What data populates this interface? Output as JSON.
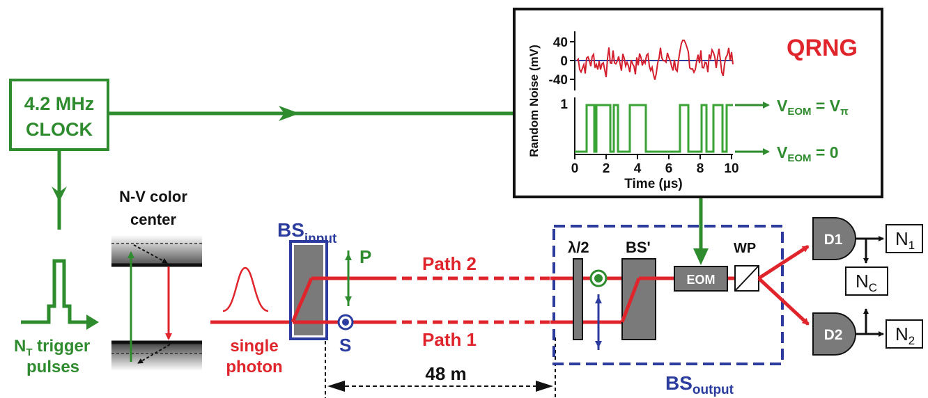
{
  "colors": {
    "green": "#2e8b2e",
    "red": "#e0242b",
    "blue": "#2b3c9e",
    "dark": "#222222",
    "gray": "#7a7a7a"
  },
  "clock": {
    "line1": "4.2 MHz",
    "line2": "CLOCK"
  },
  "trigger": {
    "n": "N",
    "sub": "T",
    "rest": " trigger",
    "line2": "pulses"
  },
  "nv": {
    "line1": "N-V color",
    "line2": "center"
  },
  "photon": {
    "line1": "single",
    "line2": "photon"
  },
  "bs_input": {
    "main": "BS",
    "sub": "input"
  },
  "polarization": {
    "p": "P",
    "s": "S"
  },
  "paths": {
    "path2": "Path 2",
    "path1": "Path 1"
  },
  "distance": "48 m",
  "halfwave": "λ/2",
  "bs_prime": "BS'",
  "eom": "EOM",
  "wp": "WP",
  "detectors": {
    "d1": "D1",
    "d2": "D2"
  },
  "counters": {
    "n1_main": "N",
    "n1_sub": "1",
    "nc_main": "N",
    "nc_sub": "C",
    "n2_main": "N",
    "n2_sub": "2"
  },
  "bs_output": {
    "main": "BS",
    "sub": "output"
  },
  "qrng": {
    "title": "QRNG",
    "ylabel": "Random Noise (mV)",
    "xlabel": "Time (µs)",
    "yticks": [
      "40",
      "0",
      "-40"
    ],
    "level_high": "1",
    "xticks": [
      "0",
      "2",
      "4",
      "6",
      "8",
      "10"
    ],
    "veom_pi": {
      "v": "V",
      "sub": "EOM",
      "eq": " = V",
      "pi": "π"
    },
    "veom_0": {
      "v": "V",
      "sub": "EOM",
      "eq": " = 0"
    }
  }
}
